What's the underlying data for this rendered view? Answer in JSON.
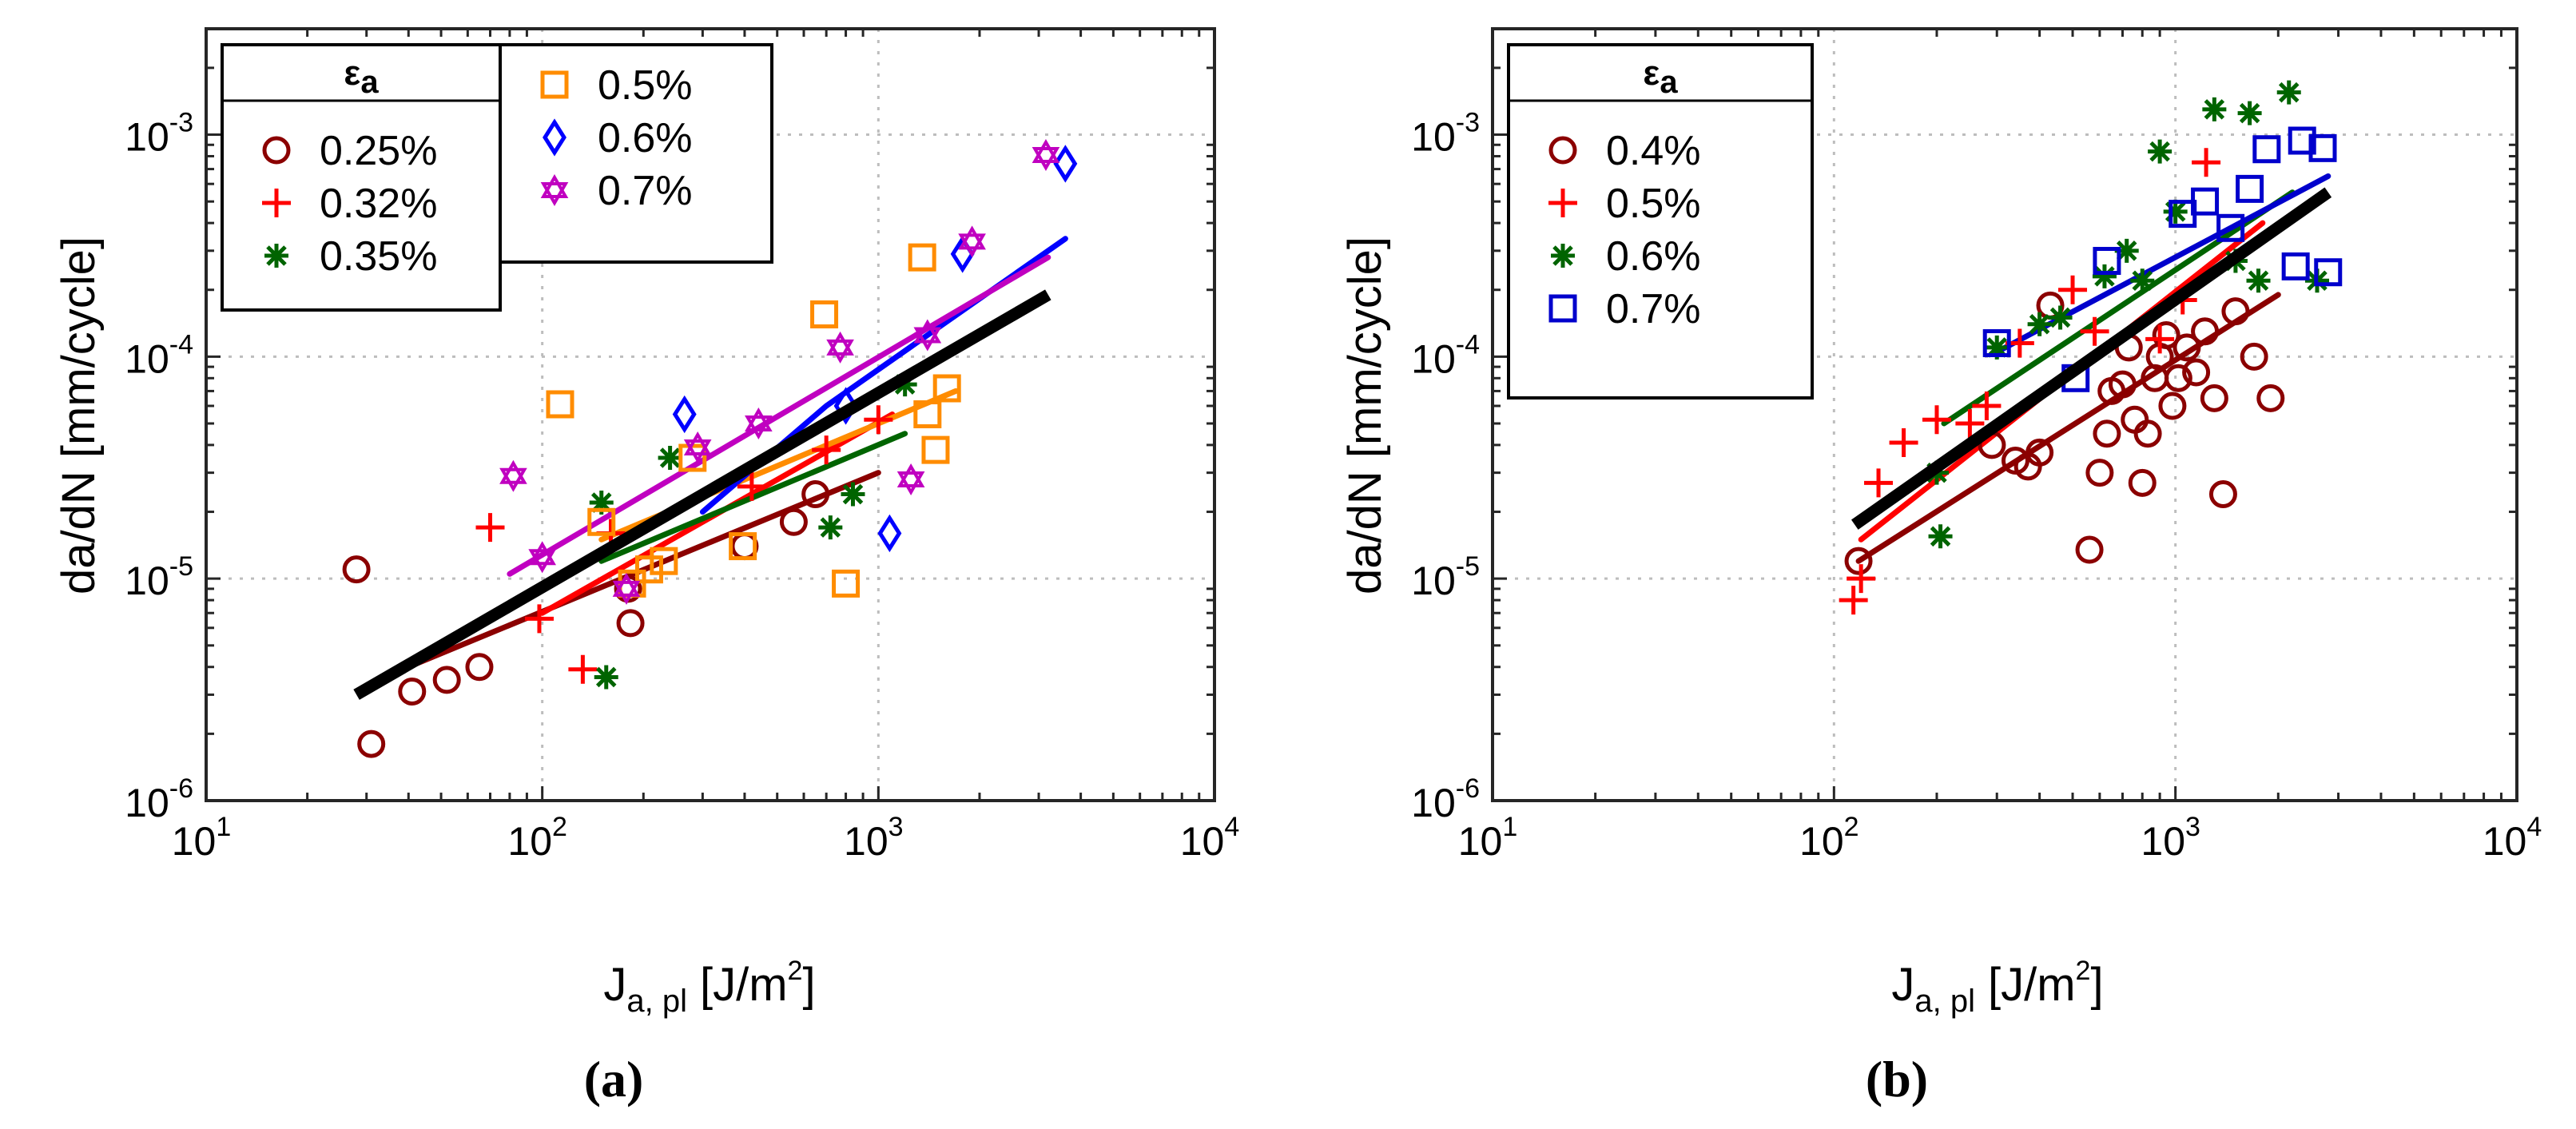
{
  "chart_data": [
    {
      "id": "a",
      "type": "scatter",
      "caption": "(a)",
      "xlabel": {
        "main": "J",
        "sub": "a, pl",
        "unit": "[J/m",
        "unit_sup": "2",
        "unit_end": "]"
      },
      "ylabel": "da/dN [mm/cycle]",
      "xscale": "log",
      "yscale": "log",
      "xlim": [
        10,
        10000
      ],
      "ylim": [
        1e-06,
        0.003
      ],
      "xticks": [
        {
          "base": "10",
          "exp": "1"
        },
        {
          "base": "10",
          "exp": "2"
        },
        {
          "base": "10",
          "exp": "3"
        },
        {
          "base": "10",
          "exp": "4"
        }
      ],
      "yticks": [
        {
          "base": "10",
          "exp": "-6"
        },
        {
          "base": "10",
          "exp": "-5"
        },
        {
          "base": "10",
          "exp": "-4"
        },
        {
          "base": "10",
          "exp": "-3"
        }
      ],
      "grid": true,
      "legend_title": "εa",
      "series": [
        {
          "name": "0.25%",
          "color": "#8b0000",
          "marker": "circle",
          "points": [
            [
              28,
              1.1e-05
            ],
            [
              31,
              1.8e-06
            ],
            [
              41,
              3.1e-06
            ],
            [
              52,
              3.5e-06
            ],
            [
              65,
              4e-06
            ],
            [
              180,
              9e-06
            ],
            [
              183,
              6.3e-06
            ],
            [
              400,
              1.4e-05
            ],
            [
              560,
              1.8e-05
            ],
            [
              650,
              2.4e-05
            ]
          ],
          "fit": [
            [
              40,
              4e-06
            ],
            [
              1000,
              3e-05
            ]
          ]
        },
        {
          "name": "0.32%",
          "color": "#ff0000",
          "marker": "plus",
          "points": [
            [
              70,
              1.7e-05
            ],
            [
              98,
              6.6e-06
            ],
            [
              132,
              3.9e-06
            ],
            [
              160,
              1.6e-05
            ],
            [
              420,
              2.6e-05
            ],
            [
              700,
              3.8e-05
            ],
            [
              1000,
              5.2e-05
            ]
          ],
          "fit": [
            [
              100,
              7e-06
            ],
            [
              1100,
              5.5e-05
            ]
          ]
        },
        {
          "name": "0.35%",
          "color": "#006400",
          "marker": "asterisk",
          "points": [
            [
              150,
              2.2e-05
            ],
            [
              155,
              3.6e-06
            ],
            [
              240,
              3.5e-05
            ],
            [
              720,
              1.7e-05
            ],
            [
              840,
              2.4e-05
            ],
            [
              1200,
              7.5e-05
            ]
          ],
          "fit": [
            [
              150,
              1.2e-05
            ],
            [
              1200,
              4.5e-05
            ]
          ]
        },
        {
          "name": "0.5%",
          "color": "#ff8c00",
          "marker": "square",
          "points": [
            [
              113,
              6.1e-05
            ],
            [
              150,
              1.8e-05
            ],
            [
              185,
              9.5e-06
            ],
            [
              208,
              1.1e-05
            ],
            [
              230,
              1.2e-05
            ],
            [
              280,
              3.5e-05
            ],
            [
              395,
              1.4e-05
            ],
            [
              690,
              0.000155
            ],
            [
              800,
              9.5e-06
            ],
            [
              1350,
              0.00028
            ],
            [
              1400,
              5.5e-05
            ],
            [
              1480,
              3.8e-05
            ],
            [
              1600,
              7.2e-05
            ]
          ],
          "fit": [
            [
              150,
              1.5e-05
            ],
            [
              1700,
              7e-05
            ]
          ]
        },
        {
          "name": "0.6%",
          "color": "#0000ff",
          "marker": "diamond",
          "points": [
            [
              265,
              5.5e-05
            ],
            [
              800,
              6e-05
            ],
            [
              1080,
              1.6e-05
            ],
            [
              1780,
              0.00029
            ],
            [
              3600,
              0.00074
            ]
          ],
          "fit": [
            [
              300,
              2e-05
            ],
            [
              700,
              6e-05
            ],
            [
              3600,
              0.00034
            ]
          ]
        },
        {
          "name": "0.7%",
          "color": "#c000c0",
          "marker": "star",
          "points": [
            [
              82,
              2.9e-05
            ],
            [
              100,
              1.25e-05
            ],
            [
              178,
              9e-06
            ],
            [
              290,
              3.9e-05
            ],
            [
              440,
              5e-05
            ],
            [
              770,
              0.00011
            ],
            [
              1250,
              2.8e-05
            ],
            [
              1400,
              0.000125
            ],
            [
              1900,
              0.00033
            ],
            [
              3150,
              0.00081
            ]
          ],
          "fit": [
            [
              80,
              1.05e-05
            ],
            [
              3200,
              0.00028
            ]
          ]
        }
      ],
      "master_fit": [
        [
          28,
          3e-06
        ],
        [
          3200,
          0.00019
        ]
      ]
    },
    {
      "id": "b",
      "type": "scatter",
      "caption": "(b)",
      "xlabel": {
        "main": "J",
        "sub": "a, pl",
        "unit": "[J/m",
        "unit_sup": "2",
        "unit_end": "]"
      },
      "ylabel": "da/dN [mm/cycle]",
      "xscale": "log",
      "yscale": "log",
      "xlim": [
        10,
        10000
      ],
      "ylim": [
        1e-06,
        0.003
      ],
      "xticks": [
        {
          "base": "10",
          "exp": "1"
        },
        {
          "base": "10",
          "exp": "2"
        },
        {
          "base": "10",
          "exp": "3"
        },
        {
          "base": "10",
          "exp": "4"
        }
      ],
      "yticks": [
        {
          "base": "10",
          "exp": "-6"
        },
        {
          "base": "10",
          "exp": "-5"
        },
        {
          "base": "10",
          "exp": "-4"
        },
        {
          "base": "10",
          "exp": "-3"
        }
      ],
      "grid": true,
      "legend_title": "εa",
      "series": [
        {
          "name": "0.4%",
          "color": "#8b0000",
          "marker": "circle",
          "points": [
            [
              118,
              1.2e-05
            ],
            [
              290,
              4e-05
            ],
            [
              340,
              3.4e-05
            ],
            [
              370,
              3.2e-05
            ],
            [
              400,
              3.7e-05
            ],
            [
              430,
              0.00017
            ],
            [
              560,
              1.35e-05
            ],
            [
              600,
              3e-05
            ],
            [
              630,
              4.5e-05
            ],
            [
              650,
              7e-05
            ],
            [
              700,
              7.5e-05
            ],
            [
              730,
              0.00011
            ],
            [
              760,
              5.2e-05
            ],
            [
              800,
              2.7e-05
            ],
            [
              830,
              4.5e-05
            ],
            [
              870,
              8e-05
            ],
            [
              900,
              0.0001
            ],
            [
              940,
              0.000125
            ],
            [
              980,
              6e-05
            ],
            [
              1020,
              8e-05
            ],
            [
              1080,
              0.00011
            ],
            [
              1150,
              8.5e-05
            ],
            [
              1220,
              0.00013
            ],
            [
              1300,
              6.5e-05
            ],
            [
              1380,
              2.4e-05
            ],
            [
              1500,
              0.00016
            ],
            [
              1700,
              0.0001
            ],
            [
              1900,
              6.5e-05
            ]
          ],
          "fit": [
            [
              118,
              1.2e-05
            ],
            [
              2000,
              0.00019
            ]
          ]
        },
        {
          "name": "0.5%",
          "color": "#ff0000",
          "marker": "plus",
          "points": [
            [
              114,
              8e-06
            ],
            [
              120,
              1e-05
            ],
            [
              135,
              2.7e-05
            ],
            [
              160,
              4.1e-05
            ],
            [
              200,
              5.2e-05
            ],
            [
              250,
              5e-05
            ],
            [
              280,
              6e-05
            ],
            [
              350,
              0.000115
            ],
            [
              500,
              0.0002
            ],
            [
              580,
              0.00013
            ],
            [
              900,
              0.00012
            ],
            [
              1050,
              0.00018
            ],
            [
              1230,
              0.00075
            ]
          ],
          "fit": [
            [
              120,
              1.5e-05
            ],
            [
              1800,
              0.0004
            ]
          ]
        },
        {
          "name": "0.6%",
          "color": "#006400",
          "marker": "asterisk",
          "points": [
            [
              200,
              3e-05
            ],
            [
              205,
              1.55e-05
            ],
            [
              300,
              0.00011
            ],
            [
              400,
              0.00014
            ],
            [
              460,
              0.00015
            ],
            [
              620,
              0.00023
            ],
            [
              720,
              0.0003
            ],
            [
              800,
              0.00022
            ],
            [
              900,
              0.00084
            ],
            [
              1000,
              0.00045
            ],
            [
              1300,
              0.0013
            ],
            [
              1500,
              0.00027
            ],
            [
              1650,
              0.00125
            ],
            [
              1750,
              0.00022
            ],
            [
              2150,
              0.00155
            ],
            [
              2600,
              0.00022
            ]
          ],
          "fit": [
            [
              210,
              5e-05
            ],
            [
              2200,
              0.00055
            ]
          ]
        },
        {
          "name": "0.7%",
          "color": "#0000cc",
          "marker": "square",
          "points": [
            [
              300,
              0.000115
            ],
            [
              510,
              8e-05
            ],
            [
              630,
              0.00027
            ],
            [
              1050,
              0.00044
            ],
            [
              1220,
              0.0005
            ],
            [
              1450,
              0.00038
            ],
            [
              1650,
              0.00057
            ],
            [
              1850,
              0.00086
            ],
            [
              2250,
              0.000255
            ],
            [
              2350,
              0.00094
            ],
            [
              2700,
              0.00087
            ],
            [
              2800,
              0.00024
            ]
          ],
          "fit": [
            [
              300,
              0.000105
            ],
            [
              2800,
              0.00065
            ]
          ]
        }
      ],
      "master_fit": [
        [
          115,
          1.75e-05
        ],
        [
          2800,
          0.00055
        ]
      ]
    }
  ]
}
